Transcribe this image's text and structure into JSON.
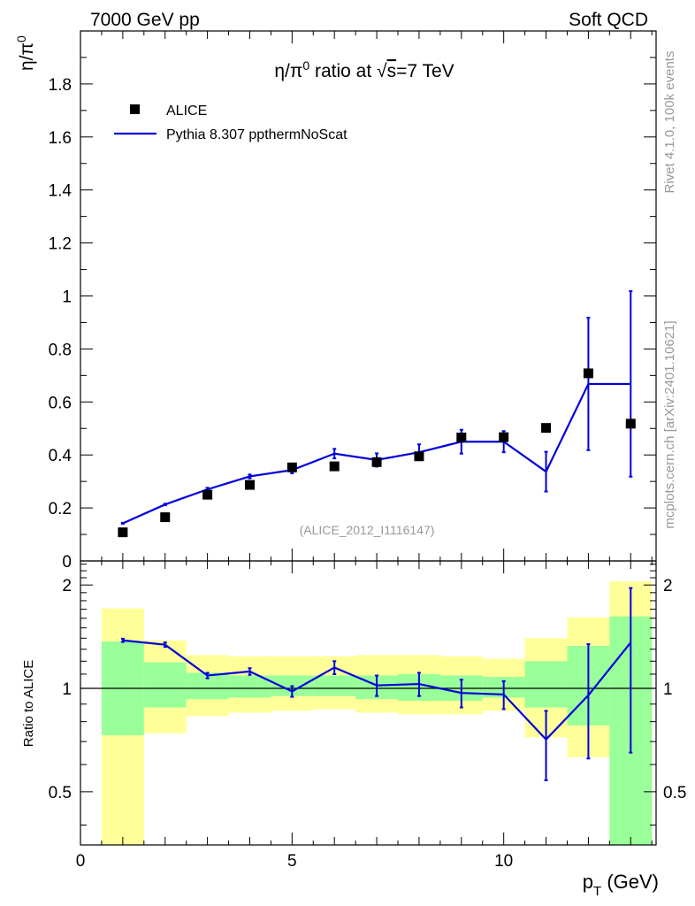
{
  "header": {
    "left": "7000 GeV pp",
    "right": "Soft QCD"
  },
  "side": {
    "rivet": "Rivet 4.1.0,  100k events",
    "mcplots": "mcplots.cern.ch [arXiv:2401.10621]"
  },
  "colors": {
    "mc": "#0000dd",
    "green_band": "#99ff99",
    "yellow_band": "#ffff99",
    "data": "#000000"
  },
  "chart_data": [
    {
      "type": "scatter",
      "panel": "main",
      "title": "η/π⁰ ratio at √s=7 TeV",
      "title_parts": {
        "pre": "η/π",
        "sup": "0",
        "mid": " ratio at ",
        "sqrt": "√",
        "s": "s",
        "post": "=7 TeV"
      },
      "ylabel": {
        "base": "η/π",
        "sup": "0"
      },
      "analysis_label": "(ALICE_2012_I1116147)",
      "xlim": [
        0,
        13.6
      ],
      "ylim": [
        0,
        2.0
      ],
      "yticks": [
        0.2,
        0.4,
        0.6,
        0.8,
        1,
        1.2,
        1.4,
        1.6,
        1.8
      ],
      "ytick_labels": [
        "0.2",
        "0.4",
        "0.6",
        "0.8",
        "1",
        "1.2",
        "1.4",
        "1.6",
        "1.8"
      ],
      "ytick_zero_label": "0",
      "legend": {
        "data": "ALICE",
        "mc": "Pythia 8.307 ppthermNoScat",
        "position": "top-left"
      },
      "series": [
        {
          "name": "ALICE",
          "x": [
            1,
            2,
            3,
            4,
            5,
            6,
            7,
            8,
            9,
            10,
            11,
            12,
            13
          ],
          "y": [
            0.108,
            0.165,
            0.25,
            0.287,
            0.353,
            0.357,
            0.373,
            0.395,
            0.466,
            0.467,
            0.502,
            0.708,
            0.518
          ]
        },
        {
          "name": "Pythia 8.307 ppthermNoScat",
          "x": [
            1,
            2,
            3,
            4,
            5,
            6,
            7,
            8,
            9,
            10,
            11,
            12,
            13
          ],
          "y": [
            0.142,
            0.213,
            0.27,
            0.319,
            0.343,
            0.405,
            0.381,
            0.41,
            0.45,
            0.45,
            0.337,
            0.668,
            0.668
          ],
          "err": [
            0.002,
            0.003,
            0.006,
            0.007,
            0.012,
            0.018,
            0.025,
            0.03,
            0.045,
            0.04,
            0.075,
            0.25,
            0.35
          ],
          "bins": [
            [
              0.5,
              1.5
            ],
            [
              1.5,
              2.5
            ],
            [
              2.5,
              3.5
            ],
            [
              3.5,
              4.5
            ],
            [
              4.5,
              5.5
            ],
            [
              5.5,
              6.5
            ],
            [
              6.5,
              7.5
            ],
            [
              7.5,
              8.5
            ],
            [
              8.5,
              9.5
            ],
            [
              9.5,
              10.5
            ],
            [
              10.5,
              11.5
            ],
            [
              11.5,
              12.5
            ],
            [
              12.5,
              13.5
            ]
          ]
        }
      ]
    },
    {
      "type": "line",
      "panel": "ratio",
      "ylabel": "Ratio to ALICE",
      "xlabel": {
        "base": "p",
        "sub": "T",
        "unit": " (GeV)"
      },
      "xlim": [
        0,
        13.6
      ],
      "ylim": [
        0.35,
        2.35
      ],
      "log_y": true,
      "xticks": [
        0,
        5,
        10
      ],
      "xtick_labels": [
        "0",
        "5",
        "10"
      ],
      "yticks": [
        0.5,
        1,
        2
      ],
      "ytick_labels": [
        "0.5",
        "1",
        "2"
      ],
      "bands": {
        "bins": [
          [
            0.5,
            1.5
          ],
          [
            1.5,
            2.5
          ],
          [
            2.5,
            3.5
          ],
          [
            3.5,
            4.5
          ],
          [
            4.5,
            5.5
          ],
          [
            5.5,
            6.5
          ],
          [
            6.5,
            7.5
          ],
          [
            7.5,
            8.5
          ],
          [
            8.5,
            9.5
          ],
          [
            9.5,
            10.5
          ],
          [
            10.5,
            11.5
          ],
          [
            11.5,
            12.5
          ],
          [
            12.5,
            13.5
          ]
        ],
        "green_lo": [
          0.73,
          0.88,
          0.93,
          0.94,
          0.95,
          0.95,
          0.93,
          0.92,
          0.92,
          0.94,
          0.88,
          0.78,
          0.35
        ],
        "green_hi": [
          1.37,
          1.19,
          1.11,
          1.09,
          1.09,
          1.09,
          1.09,
          1.1,
          1.09,
          1.08,
          1.2,
          1.33,
          1.62
        ],
        "yellow_lo": [
          0.35,
          0.74,
          0.83,
          0.85,
          0.86,
          0.87,
          0.85,
          0.84,
          0.84,
          0.86,
          0.72,
          0.63,
          0.35
        ],
        "yellow_hi": [
          1.71,
          1.38,
          1.25,
          1.24,
          1.24,
          1.24,
          1.25,
          1.25,
          1.24,
          1.22,
          1.4,
          1.61,
          2.05
        ]
      },
      "series": [
        {
          "name": "Pythia 8.307 ppthermNoScat / ALICE",
          "x": [
            1,
            2,
            3,
            4,
            5,
            6,
            7,
            8,
            9,
            10,
            11,
            12,
            13
          ],
          "y": [
            1.38,
            1.34,
            1.09,
            1.12,
            0.98,
            1.15,
            1.02,
            1.03,
            0.97,
            0.96,
            0.71,
            0.955,
            1.36
          ],
          "err_lo": [
            0.015,
            0.02,
            0.02,
            0.025,
            0.035,
            0.05,
            0.07,
            0.08,
            0.09,
            0.09,
            0.17,
            0.33,
            0.71
          ],
          "err_hi": [
            0.015,
            0.02,
            0.02,
            0.025,
            0.035,
            0.05,
            0.07,
            0.08,
            0.09,
            0.09,
            0.15,
            0.39,
            0.6
          ]
        }
      ]
    }
  ]
}
